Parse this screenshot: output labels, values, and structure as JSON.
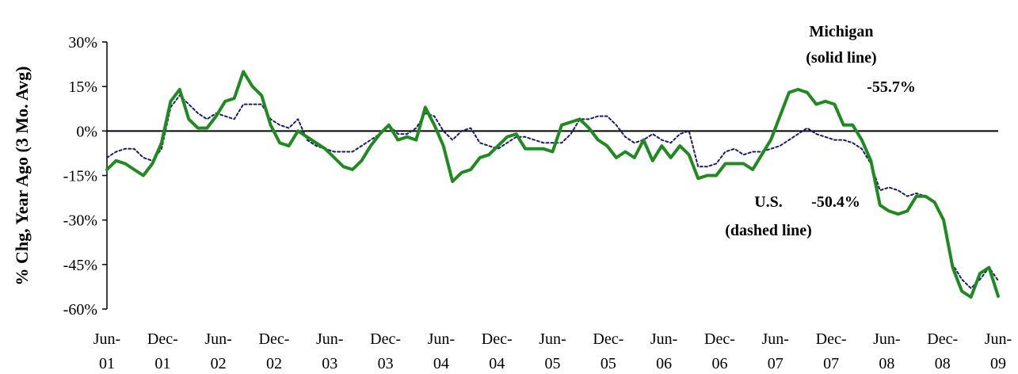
{
  "chart_data": {
    "type": "line",
    "title": "",
    "xlabel": "",
    "ylabel": "% Chg, Year Ago (3 Mo. Avg)",
    "ylim": [
      -60,
      30
    ],
    "yticks": [
      30,
      15,
      0,
      -15,
      -30,
      -45,
      -60
    ],
    "ytick_labels": [
      "30%",
      "15%",
      "0%",
      "-15%",
      "-30%",
      "-45%",
      "-60%"
    ],
    "xlim": [
      "Jun-01",
      "Jun-09"
    ],
    "xticks": [
      {
        "top": "Jun-",
        "bottom": "01"
      },
      {
        "top": "Dec-",
        "bottom": "01"
      },
      {
        "top": "Jun-",
        "bottom": "02"
      },
      {
        "top": "Dec-",
        "bottom": "02"
      },
      {
        "top": "Jun-",
        "bottom": "03"
      },
      {
        "top": "Dec-",
        "bottom": "03"
      },
      {
        "top": "Jun-",
        "bottom": "04"
      },
      {
        "top": "Dec-",
        "bottom": "04"
      },
      {
        "top": "Jun-",
        "bottom": "05"
      },
      {
        "top": "Dec-",
        "bottom": "05"
      },
      {
        "top": "Jun-",
        "bottom": "06"
      },
      {
        "top": "Dec-",
        "bottom": "06"
      },
      {
        "top": "Jun-",
        "bottom": "07"
      },
      {
        "top": "Dec-",
        "bottom": "07"
      },
      {
        "top": "Jun-",
        "bottom": "08"
      },
      {
        "top": "Dec-",
        "bottom": "08"
      },
      {
        "top": "Jun-",
        "bottom": "09"
      }
    ],
    "grid": false,
    "zero_line": true,
    "series": [
      {
        "name": "Michigan",
        "style": "solid",
        "color": "#1f8a1f",
        "values": [
          -13,
          -10,
          -11,
          -13,
          -15,
          -11,
          -4,
          10,
          14,
          4,
          1,
          1,
          5,
          10,
          11,
          20,
          15,
          12,
          2,
          -4,
          -5,
          0,
          -2,
          -4,
          -6,
          -9,
          -12,
          -13,
          -10,
          -5,
          -1,
          2,
          -3,
          -2,
          -3,
          8,
          2,
          -5,
          -17,
          -14,
          -13,
          -9,
          -8,
          -5,
          -2,
          -1,
          -6,
          -6,
          -6,
          -7,
          2,
          3,
          4,
          1,
          -3,
          -5,
          -9,
          -7,
          -9,
          -3,
          -10,
          -5,
          -9,
          -5,
          -8,
          -16,
          -15,
          -15,
          -11,
          -11,
          -11,
          -13,
          -8,
          -3,
          5,
          13,
          14,
          13,
          9,
          10,
          9,
          2,
          2,
          -3,
          -10,
          -25,
          -27,
          -28,
          -27,
          -22,
          -22,
          -24,
          -30,
          -46,
          -54,
          -56,
          -48,
          -46,
          -55.7
        ]
      },
      {
        "name": "U.S.",
        "style": "dashed",
        "color": "#1a1a6e",
        "values": [
          -9,
          -7,
          -6,
          -6,
          -9,
          -10,
          -6,
          8,
          12,
          9,
          6,
          4,
          6,
          5,
          4,
          9,
          9,
          9,
          4,
          2,
          1,
          4,
          -3,
          -5,
          -6,
          -7,
          -7,
          -7,
          -5,
          -3,
          -1,
          2,
          -1,
          -1,
          1,
          6,
          5,
          0,
          -3,
          0,
          1,
          -4,
          -5,
          -6,
          -4,
          -2,
          -2,
          -3,
          -4,
          -4,
          -4,
          -1,
          4,
          4,
          5,
          5,
          2,
          -2,
          -4,
          -3,
          -1,
          -3,
          -4,
          -1,
          0,
          -12,
          -12,
          -11,
          -7,
          -6,
          -8,
          -7,
          -7,
          -6,
          -5,
          -3,
          -1,
          1,
          -1,
          -2,
          -3,
          -3,
          -4,
          -6,
          -11,
          -20,
          -19,
          -20,
          -22,
          -21,
          -22,
          -24,
          -30,
          -45,
          -50,
          -53,
          -50,
          -46,
          -50.4
        ]
      }
    ],
    "annotations": [
      {
        "id": "michigan-label",
        "lines": [
          "Michigan",
          "(solid line)"
        ]
      },
      {
        "id": "michigan-value",
        "lines": [
          "-55.7%"
        ]
      },
      {
        "id": "us-label",
        "lines": [
          "U.S.",
          "(dashed line)"
        ]
      },
      {
        "id": "us-value",
        "lines": [
          "-50.4%"
        ]
      }
    ]
  }
}
